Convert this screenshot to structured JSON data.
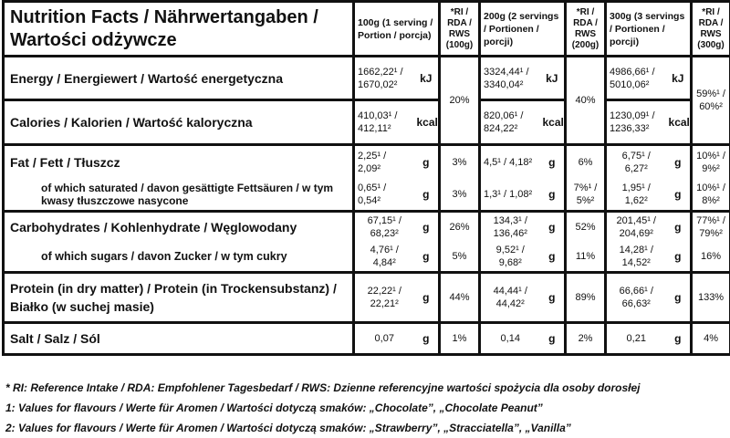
{
  "title": "Nutrition Facts / Nährwertangaben / Wartości odżywcze",
  "headers": {
    "c100": "100g (1 serving / Portion / porcja)",
    "ri100": "*RI / RDA / RWS (100g)",
    "c200": "200g (2 servings / Portionen / porcji)",
    "ri200": "*RI / RDA / RWS (200g)",
    "c300": "300g (3 servings / Portionen / porcji)",
    "ri300": "*RI / RDA / RWS (300g)"
  },
  "rows": [
    {
      "label": "Energy / Energiewert / Wartość energetyczna",
      "v100": "1662,22¹ / 1670,02²",
      "v200": "3324,44¹ / 3340,04²",
      "v300": "4986,66¹ / 5010,06²",
      "unit": "kJ"
    },
    {
      "label": "Calories / Kalorien / Wartość kaloryczna",
      "v100": "410,03¹ / 412,11²",
      "v200": "820,06¹ / 824,22²",
      "v300": "1230,09¹ / 1236,33²",
      "unit": "kcal"
    },
    {
      "label": "Fat / Fett / Tłuszcz",
      "v100": "2,25¹ / 2,09²",
      "ri100": "3%",
      "v200": "4,5¹ / 4,18²",
      "ri200": "6%",
      "v300": "6,75¹ / 6,27²",
      "ri300": "10%¹ / 9%²",
      "unit": "g"
    },
    {
      "label": "of which saturated / davon gesättigte Fettsäuren / w tym kwasy tłuszczowe nasycone",
      "v100": "0,65¹ / 0,54²",
      "ri100": "3%",
      "v200": "1,3¹ / 1,08²",
      "ri200": "7%¹ / 5%²",
      "v300": "1,95¹ / 1,62²",
      "ri300": "10%¹ / 8%²",
      "unit": "g"
    },
    {
      "label": "Carbohydrates / Kohlenhydrate / Węglowodany",
      "v100": "67,15¹ / 68,23²",
      "ri100": "26%",
      "v200": "134,3¹ / 136,46²",
      "ri200": "52%",
      "v300": "201,45¹ / 204,69²",
      "ri300": "77%¹ / 79%²",
      "unit": "g"
    },
    {
      "label": "of which sugars / davon Zucker / w tym cukry",
      "v100": "4,76¹ / 4,84²",
      "ri100": "5%",
      "v200": "9,52¹ / 9,68²",
      "ri200": "11%",
      "v300": "14,28¹ / 14,52²",
      "ri300": "16%",
      "unit": "g"
    },
    {
      "label": "Protein (in dry matter) / Protein (in Trockensubstanz) / Białko (w suchej masie)",
      "v100": "22,22¹ / 22,21²",
      "ri100": "44%",
      "v200": "44,44¹ / 44,42²",
      "ri200": "89%",
      "v300": "66,66¹ / 66,63²",
      "ri300": "133%",
      "unit": "g"
    },
    {
      "label": "Salt / Salz / Sól",
      "v100": "0,07",
      "ri100": "1%",
      "v200": "0,14",
      "ri200": "2%",
      "v300": "0,21",
      "ri300": "4%",
      "unit": "g"
    }
  ],
  "energy_ri": {
    "ri100": "20%",
    "ri200": "40%",
    "ri300": "59%¹ / 60%²"
  },
  "footnotes": [
    "* RI: Reference Intake / RDA: Empfohlener Tagesbedarf / RWS: Dzienne referencyjne wartości spożycia dla osoby dorosłej",
    "1: Values for flavours / Werte für Aromen / Wartości dotyczą smaków: „Chocolate”, „Chocolate Peanut”",
    "2: Values for flavours / Werte für Aromen / Wartości dotyczą smaków: „Strawberry”, „Stracciatella”, „Vanilla”"
  ]
}
